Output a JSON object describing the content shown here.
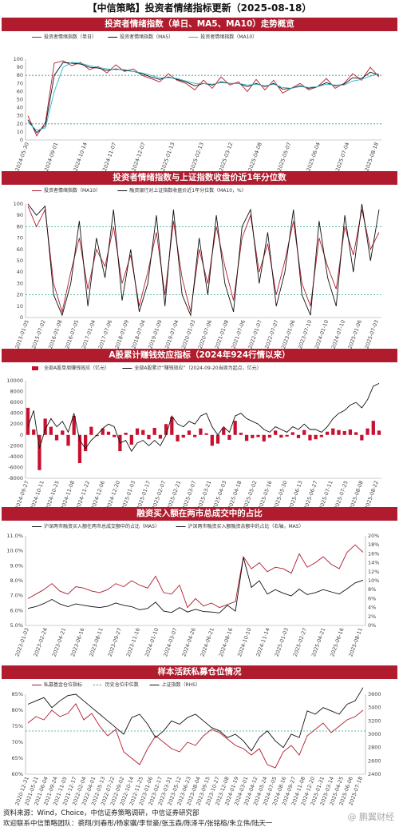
{
  "page_title": "【中信策略】投资者情绪指标更新（2025-08-18）",
  "colors": {
    "red": "#b01c2e",
    "black": "#111111",
    "cyan": "#2bb7c9",
    "dash": "#2aa58a",
    "bar": "#c8102e"
  },
  "charts": [
    {
      "header": "投资者情绪指数（单日、MA5、MA10）走势概览",
      "legend": [
        "投资者情绪指数（单日）",
        "投资者情绪指数（MA5）",
        "投资者情绪指数（MA10）"
      ],
      "yticks": [
        "100",
        "90",
        "80",
        "70",
        "60",
        "50",
        "40",
        "30",
        "20",
        "10",
        "0"
      ],
      "xticks": [
        "2024-05-30",
        "2024-09-01",
        "2024-10-14",
        "2024-11-07",
        "2024-12-07",
        "2025-01-13",
        "2025-02-13",
        "2025-03-12",
        "2025-04-08",
        "2025-05-07",
        "2025-06-04",
        "2025-07-04",
        "2025-08-18"
      ],
      "chart_data": {
        "type": "line",
        "ylim": [
          0,
          100
        ],
        "ref_lines": [
          80,
          20
        ],
        "series": [
          {
            "name": "投资者情绪指数（单日）",
            "values": [
              30,
              5,
              22,
              95,
              98,
              92,
              96,
              87,
              91,
              83,
              93,
              85,
              88,
              80,
              76,
              72,
              82,
              74,
              70,
              62,
              74,
              64,
              78,
              68,
              72,
              60,
              75,
              62,
              74,
              58,
              64,
              70,
              62,
              66,
              76,
              64,
              70,
              82,
              74,
              90,
              78
            ]
          },
          {
            "name": "投资者情绪指数（MA5）",
            "values": [
              25,
              9,
              18,
              80,
              96,
              95,
              94,
              90,
              89,
              86,
              88,
              86,
              85,
              82,
              78,
              75,
              78,
              75,
              72,
              67,
              70,
              68,
              72,
              70,
              70,
              66,
              70,
              66,
              70,
              63,
              64,
              67,
              64,
              66,
              71,
              67,
              69,
              77,
              76,
              84,
              80
            ]
          },
          {
            "name": "投资者情绪指数（MA10）",
            "values": [
              22,
              12,
              15,
              60,
              90,
              96,
              95,
              92,
              90,
              88,
              87,
              87,
              85,
              83,
              80,
              77,
              77,
              76,
              73,
              70,
              70,
              69,
              71,
              70,
              70,
              68,
              69,
              67,
              69,
              65,
              64,
              66,
              65,
              66,
              69,
              68,
              68,
              73,
              75,
              79,
              82
            ]
          }
        ]
      }
    },
    {
      "header": "投资者情绪指数与上证指数收盘价近1年分位数",
      "legend": [
        "投资者情绪指数（MA10）",
        "融资银行对上证指数收盘价近1年分位数（MA10，%）"
      ],
      "yticks": [
        "100",
        "90",
        "80",
        "70",
        "60",
        "50",
        "40",
        "30",
        "20",
        "10",
        "0"
      ],
      "xticks": [
        "2015-01-05",
        "2015-07-02",
        "2016-01-08",
        "2016-07-05",
        "2017-01-04",
        "2017-07-06",
        "2018-01-09",
        "2018-07-04",
        "2019-01-09",
        "2019-07-04",
        "2020-01-03",
        "2020-07-06",
        "2021-01-08",
        "2021-07-06",
        "2022-01-07",
        "2022-07-07",
        "2023-01-06",
        "2023-07-10",
        "2024-01-10",
        "2024-07-10",
        "2025-01-06",
        "2025-07-03"
      ],
      "chart_data": {
        "type": "line",
        "ylim": [
          0,
          100
        ],
        "ref_lines": [
          80,
          20
        ],
        "series": [
          {
            "name": "投资者情绪指数（MA10）",
            "values": [
              98,
              80,
              95,
              30,
              5,
              40,
              70,
              25,
              60,
              45,
              80,
              30,
              55,
              10,
              40,
              75,
              20,
              85,
              35,
              5,
              60,
              30,
              80,
              45,
              15,
              70,
              90,
              40,
              65,
              20,
              50,
              85,
              30,
              10,
              70,
              45,
              25,
              80,
              55,
              95,
              60,
              75
            ]
          },
          {
            "name": "融资银行对上证指数收盘价近1年分位数（MA10，%）",
            "values": [
              100,
              90,
              98,
              20,
              2,
              30,
              85,
              10,
              70,
              35,
              95,
              15,
              60,
              5,
              30,
              90,
              10,
              95,
              20,
              2,
              70,
              20,
              90,
              30,
              5,
              80,
              95,
              30,
              75,
              10,
              40,
              95,
              20,
              2,
              85,
              35,
              10,
              90,
              40,
              100,
              50,
              95
            ]
          }
        ]
      }
    },
    {
      "header": "A股累计赚钱效应指标（2024年924行情以来）",
      "legend": [
        "全部A股单周赚钱效应（亿元）",
        "全部A股累计“赚钱效应”（2024-09-20当周为起点，亿元）"
      ],
      "yticks": [
        "10000",
        "8000",
        "6000",
        "4000",
        "2000",
        "0",
        "-2000",
        "-4000",
        "-6000",
        "-8000"
      ],
      "xticks": [
        "2024-09-27",
        "2024-10-11",
        "2024-10-25",
        "2024-11-08",
        "2024-11-22",
        "2024-12-06",
        "2024-12-20",
        "2025-01-03",
        "2025-01-17",
        "2025-02-07",
        "2025-02-21",
        "2025-03-07",
        "2025-03-21",
        "2025-04-03",
        "2025-04-18",
        "2025-05-02",
        "2025-05-16",
        "2025-05-30",
        "2025-06-13",
        "2025-06-27",
        "2025-07-11",
        "2025-07-25",
        "2025-08-08",
        "2025-08-22"
      ],
      "chart_data": {
        "type": "bar",
        "ylim": [
          -8000,
          10000
        ],
        "series": [
          {
            "name": "全部A股单周赚钱效应（亿元）",
            "values": [
              5000,
              1000,
              -6500,
              3000,
              1500,
              -1000,
              800,
              -2000,
              3500,
              -5200,
              -3000,
              1500,
              -200,
              1200,
              600,
              -400,
              -3000,
              400,
              -1800,
              1200,
              900,
              -800,
              1300,
              -700,
              2000,
              3300,
              -1200,
              -500,
              800,
              -400,
              1200,
              300,
              -2000,
              -1600,
              1300,
              -900,
              2600,
              400,
              -1100,
              -600,
              -400,
              -1200,
              -500,
              800,
              -500,
              -300,
              500,
              -600,
              900,
              -1000,
              -800,
              -400,
              600,
              1200,
              900,
              700,
              1000,
              500,
              -1000,
              1200,
              2600,
              800
            ]
          },
          {
            "name": "全部A股累计“赚钱效应”（2024-09-20当周为起点，亿元）",
            "values": [
              1500,
              4500,
              -2500,
              1000,
              3000,
              1500,
              2500,
              500,
              4000,
              -1000,
              -2500,
              -1000,
              0,
              1200,
              2000,
              1500,
              -1500,
              -1000,
              -3000,
              -1500,
              -1000,
              -2000,
              -1000,
              -2000,
              0,
              3500,
              2000,
              1500,
              2500,
              2000,
              3500,
              4000,
              1500,
              0,
              1500,
              500,
              3500,
              4000,
              3000,
              2500,
              2000,
              1000,
              500,
              1500,
              1000,
              500,
              1500,
              1000,
              2000,
              1000,
              1000,
              500,
              1500,
              3000,
              4000,
              4500,
              5500,
              6000,
              5000,
              6500,
              9000,
              9500
            ]
          }
        ]
      }
    },
    {
      "header": "融资买入额在两市总成交中的占比",
      "legend": [
        "沪深两市融资买入额在两市总成交额中的占比（MA5）",
        "沪深两市融资买入额融资余额中的占比（右轴，MA5）"
      ],
      "yticks": [
        "11.0%",
        "10.0%",
        "9.0%",
        "8.0%",
        "7.0%",
        "6.0%",
        "5.0%"
      ],
      "yticks_right": [
        "20%",
        "18%",
        "16%",
        "14%",
        "12%",
        "10%",
        "8%",
        "6%",
        "4%",
        "2%",
        "0%"
      ],
      "xticks": [
        "2023-01-03",
        "2023-02-24",
        "2023-04-21",
        "2023-06-16",
        "2023-08-11",
        "2023-09-27",
        "2023-11-16",
        "2024-01-10",
        "2024-03-07",
        "2024-04-26",
        "2024-06-21",
        "2024-08-16",
        "2024-10-10",
        "2024-11-14",
        "2025-01-03",
        "2025-02-27",
        "2025-04-21",
        "2025-06-16",
        "2025-08-11"
      ],
      "chart_data": {
        "type": "line",
        "ylim": [
          5,
          11
        ],
        "ylim_right": [
          0,
          20
        ],
        "series": [
          {
            "name": "沪深两市融资买入额在两市总成交额中的占比（MA5）",
            "values": [
              6.8,
              7.1,
              7.4,
              7.8,
              7.3,
              7.1,
              7.6,
              7.5,
              7.3,
              7.2,
              7.4,
              7.8,
              7.6,
              8.0,
              7.7,
              7.5,
              8.3,
              7.2,
              7.1,
              7.7,
              6.2,
              6.8,
              6.3,
              6.5,
              6.2,
              6.4,
              6.6,
              9.6,
              8.8,
              9.2,
              8.6,
              8.9,
              8.8,
              8.5,
              9.8,
              8.9,
              9.2,
              9.6,
              9.1,
              8.8,
              9.9,
              10.4,
              9.9
            ]
          },
          {
            "name": "沪深两市融资买入额融资余额中的占比（右轴，MA5）",
            "values": [
              3.8,
              4.2,
              4.9,
              5.8,
              4.8,
              4.2,
              4.8,
              4.5,
              4.2,
              4.0,
              4.3,
              5.0,
              4.5,
              4.2,
              3.5,
              3.8,
              5.2,
              3.2,
              2.9,
              4.0,
              3.0,
              3.6,
              3.1,
              3.0,
              2.8,
              4.5,
              3.2,
              15.2,
              8.5,
              10.0,
              7.0,
              8.0,
              7.2,
              6.6,
              8.1,
              6.9,
              7.3,
              8.0,
              7.5,
              7.0,
              8.2,
              9.5,
              10.1
            ]
          }
        ]
      }
    },
    {
      "header": "样本活跃私募仓位情况",
      "legend": [
        "私募基金仓位指标",
        "历史仓位中位数",
        "上证指数（RHS）"
      ],
      "yticks": [
        "85%",
        "80%",
        "75%",
        "70%",
        "65%",
        "60%"
      ],
      "yticks_right": [
        "3600",
        "3400",
        "3200",
        "3000",
        "2800",
        "2600",
        "2400"
      ],
      "xticks": [
        "2020-12-31",
        "2021-05-21",
        "2021-06-04",
        "2021-09-24",
        "2021-11-05",
        "2021-12-17",
        "2022-02-04",
        "2022-04-01",
        "2022-05-13",
        "2022-07-22",
        "2022-09-02",
        "2022-10-14",
        "2022-11-25",
        "2023-01-06",
        "2023-02-17",
        "2023-03-31",
        "2023-05-12",
        "2023-06-23",
        "2023-08-04",
        "2023-09-15",
        "2023-10-27",
        "2023-12-08",
        "2024-01-19",
        "2024-03-01",
        "2024-04-12",
        "2024-05-24",
        "2024-07-05",
        "2024-08-16",
        "2024-09-27",
        "2024-11-08",
        "2024-12-20",
        "2025-01-31",
        "2025-03-14",
        "2025-04-25",
        "2025-06-06",
        "2025-07-18"
      ],
      "chart_data": {
        "type": "line",
        "ylim": [
          60,
          85
        ],
        "ylim_right": [
          2400,
          3600
        ],
        "ref_lines": [
          73.5
        ],
        "series": [
          {
            "name": "私募基金仓位指标",
            "values": [
              76,
              78,
              77,
              80,
              78,
              79,
              82,
              77,
              79,
              75,
              72,
              74,
              67,
              65,
              63,
              68,
              72,
              70,
              68,
              67,
              70,
              69,
              72,
              74,
              73,
              71,
              69,
              68,
              66,
              68,
              63,
              62,
              67,
              69,
              66,
              72,
              74,
              76,
              73,
              75,
              77,
              78,
              80
            ]
          },
          {
            "name": "上证指数（RHS）",
            "values": [
              3450,
              3500,
              3550,
              3400,
              3500,
              3580,
              3600,
              3500,
              3400,
              3300,
              3200,
              3100,
              3000,
              3250,
              3300,
              3150,
              2950,
              3050,
              3200,
              3150,
              3250,
              3300,
              3200,
              3100,
              3050,
              2950,
              3000,
              2900,
              2750,
              2950,
              3050,
              2900,
              2800,
              3000,
              2950,
              3350,
              3300,
              3400,
              3350,
              3300,
              3450,
              3500,
              3700
            ]
          }
        ]
      }
    }
  ],
  "footer": {
    "source": "资料来源：Wind，Choice，中信证券策略调研，中信证券研究部",
    "team": "欢迎联系中信策略团队：裘翔/刘春彤/杨家骥/李世豪/张玉森/陈泽平/张铭榕/朱立伟/陆天一",
    "watermark": "@ 鹏翼财经"
  }
}
